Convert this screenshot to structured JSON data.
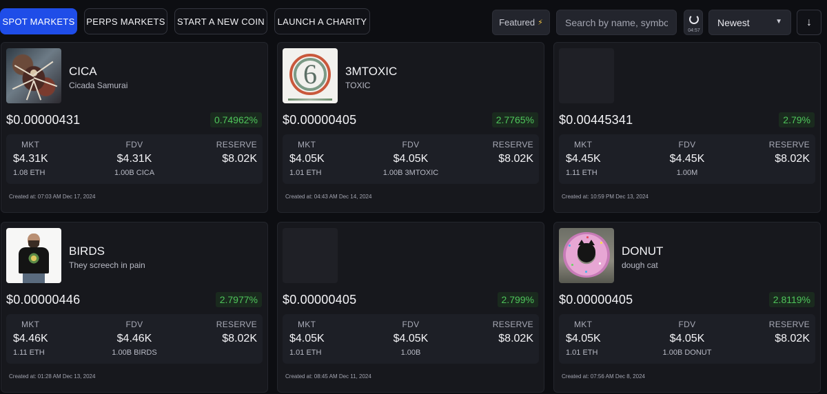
{
  "nav": {
    "tabs": [
      {
        "label": "SPOT MARKETS",
        "active": true
      },
      {
        "label": "PERPS MARKETS",
        "active": false
      },
      {
        "label": "START A NEW COIN",
        "active": false
      },
      {
        "label": "LAUNCH A CHARITY",
        "active": false
      }
    ]
  },
  "toolbar": {
    "featured_label": "Featured",
    "featured_icon": "lightning-icon",
    "search_placeholder": "Search by name, symbol",
    "refresh_icon": "refresh-spinner-icon",
    "refresh_timer": "04:57",
    "sort_value": "Newest",
    "sort_chevron_icon": "chevron-down-icon",
    "sort_direction_icon": "arrow-down-icon"
  },
  "labels": {
    "mkt": "MKT",
    "fdv": "FDV",
    "reserve": "RESERVE"
  },
  "colors": {
    "accent": "#1f4de8",
    "positive": "#4fc55b",
    "background": "#0d0e12",
    "card": "#17181d"
  },
  "coins": [
    {
      "ticker": "CICA",
      "name": "Cicada Samurai",
      "price": "$0.00000431",
      "change": "0.74962%",
      "mkt": "$4.31K",
      "mkt_sub": "1.08 ETH",
      "fdv": "$4.31K",
      "fdv_sub": "1.00B CICA",
      "reserve": "$8.02K",
      "created": "Created at: 07:03 AM Dec 17, 2024",
      "image": "cicada-samurai-image"
    },
    {
      "ticker": "3MTOXIC",
      "name": "TOXIC",
      "price": "$0.00000405",
      "change": "2.7765%",
      "mkt": "$4.05K",
      "mkt_sub": "1.01 ETH",
      "fdv": "$4.05K",
      "fdv_sub": "1.00B 3MTOXIC",
      "reserve": "$8.02K",
      "created": "Created at: 04:43 AM Dec 14, 2024",
      "image": "toxic-logo-image"
    },
    {
      "ticker": "",
      "name": "",
      "price": "$0.00445341",
      "change": "2.79%",
      "mkt": "$4.45K",
      "mkt_sub": "1.11 ETH",
      "fdv": "$4.45K",
      "fdv_sub": "1.00M",
      "reserve": "$8.02K",
      "created": "Created at: 10:59 PM Dec 13, 2024",
      "image": "empty-image-placeholder"
    },
    {
      "ticker": "BIRDS",
      "name": "They screech in pain",
      "price": "$0.00000446",
      "change": "2.7977%",
      "mkt": "$4.46K",
      "mkt_sub": "1.11 ETH",
      "fdv": "$4.46K",
      "fdv_sub": "1.00B BIRDS",
      "reserve": "$8.02K",
      "created": "Created at: 01:28 AM Dec 13, 2024",
      "image": "man-in-tshirt-image"
    },
    {
      "ticker": "",
      "name": "",
      "price": "$0.00000405",
      "change": "2.799%",
      "mkt": "$4.05K",
      "mkt_sub": "1.01 ETH",
      "fdv": "$4.05K",
      "fdv_sub": "1.00B",
      "reserve": "$8.02K",
      "created": "Created at: 08:45 AM Dec 11, 2024",
      "image": "empty-image-placeholder"
    },
    {
      "ticker": "DONUT",
      "name": "dough cat",
      "price": "$0.00000405",
      "change": "2.8119%",
      "mkt": "$4.05K",
      "mkt_sub": "1.01 ETH",
      "fdv": "$4.05K",
      "fdv_sub": "1.00B DONUT",
      "reserve": "$8.02K",
      "created": "Created at: 07:56 AM Dec 8, 2024",
      "image": "cat-in-donut-image"
    }
  ]
}
